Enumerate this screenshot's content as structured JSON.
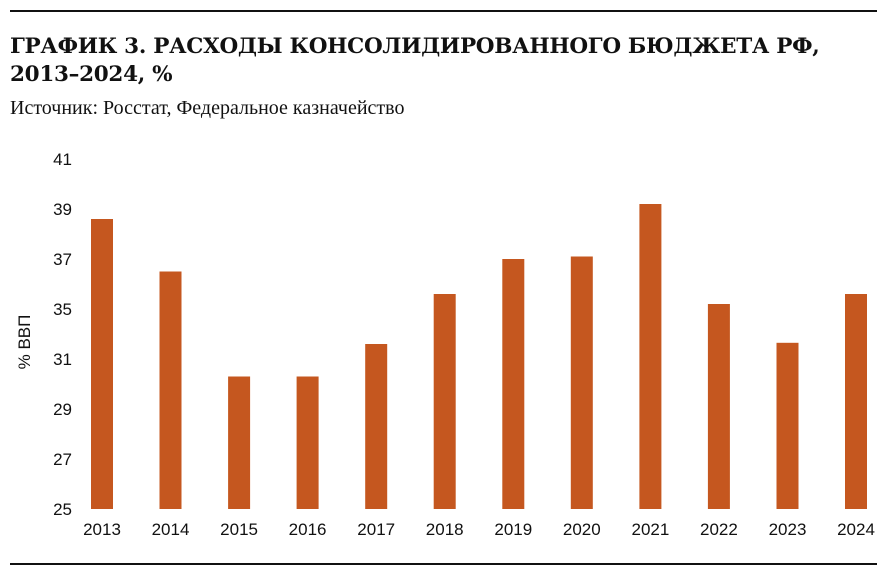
{
  "header": {
    "title_line1": "ГРАФИК 3. РАСХОДЫ КОНСОЛИДИРОВАННОГО БЮДЖЕТА РФ,",
    "title_line2": "2013–2024, %",
    "source": "Источник: Росстат, Федеральное казначейство"
  },
  "chart_data": {
    "type": "bar",
    "title": "ГРАФИК 3. РАСХОДЫ КОНСОЛИДИРОВАННОГО БЮДЖЕТА РФ, 2013–2024, %",
    "xlabel": "",
    "ylabel": "% ВВП",
    "categories": [
      "2013",
      "2014",
      "2015",
      "2016",
      "2017",
      "2018",
      "2019",
      "2020",
      "2021",
      "2022",
      "2023",
      "2024"
    ],
    "values": [
      38.6,
      36.5,
      30.3,
      30.3,
      32.2,
      35.6,
      37.0,
      37.1,
      39.2,
      35.2,
      32.3,
      35.6
    ],
    "y_ticks": [
      "25",
      "27",
      "29",
      "31",
      "35",
      "37",
      "39",
      "41"
    ],
    "grid": false,
    "legend": "none",
    "bar_color": "#C5571F"
  }
}
